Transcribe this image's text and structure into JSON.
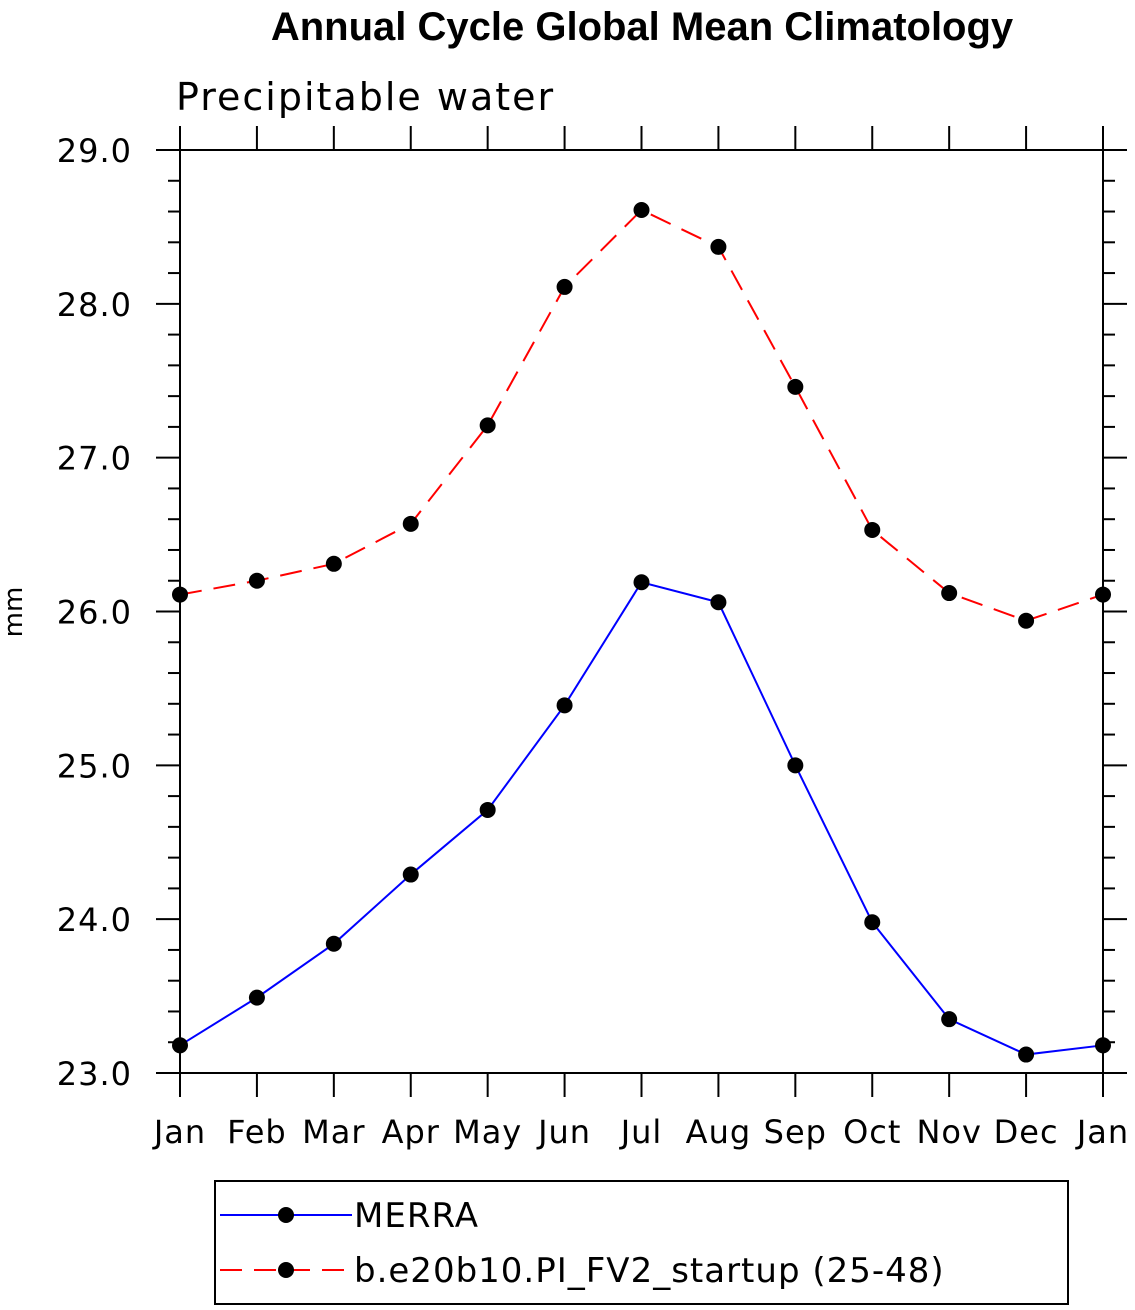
{
  "chart_data": {
    "type": "line",
    "title": "Annual Cycle Global Mean Climatology",
    "subtitle": "Precipitable water",
    "xlabel": "",
    "ylabel": "mm",
    "categories": [
      "Jan",
      "Feb",
      "Mar",
      "Apr",
      "May",
      "Jun",
      "Jul",
      "Aug",
      "Sep",
      "Oct",
      "Nov",
      "Dec",
      "Jan"
    ],
    "ylim": [
      23.0,
      29.0
    ],
    "yticks": [
      "23.0",
      "24.0",
      "25.0",
      "26.0",
      "27.0",
      "28.0",
      "29.0"
    ],
    "grid": false,
    "legend_placement": "bottom",
    "series": [
      {
        "name": "MERRA",
        "color": "#0000ff",
        "line_style": "solid",
        "marker": "filled-circle",
        "values": [
          23.18,
          23.49,
          23.84,
          24.29,
          24.71,
          25.39,
          26.19,
          26.06,
          25.0,
          23.98,
          23.35,
          23.12,
          23.18
        ]
      },
      {
        "name": "b.e20b10.PI_FV2_startup (25-48)",
        "color": "#ff0000",
        "line_style": "dashed",
        "marker": "filled-circle",
        "values": [
          26.11,
          26.2,
          26.31,
          26.57,
          27.21,
          28.11,
          28.61,
          28.37,
          27.46,
          26.53,
          26.12,
          25.94,
          26.11
        ]
      }
    ]
  }
}
